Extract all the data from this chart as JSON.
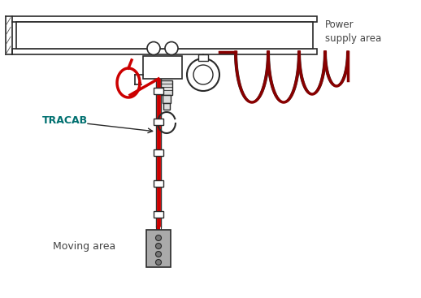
{
  "bg_color": "#ffffff",
  "line_color": "#2a2a2a",
  "red_color": "#cc0000",
  "dark_red": "#880000",
  "gray_fill": "#aaaaaa",
  "label_tracab": "TRACAB",
  "label_power": "Power\nsupply area",
  "label_moving": "Moving area",
  "text_color": "#444444",
  "cyan_color": "#007070",
  "figsize": [
    5.18,
    3.67
  ],
  "dpi": 100
}
